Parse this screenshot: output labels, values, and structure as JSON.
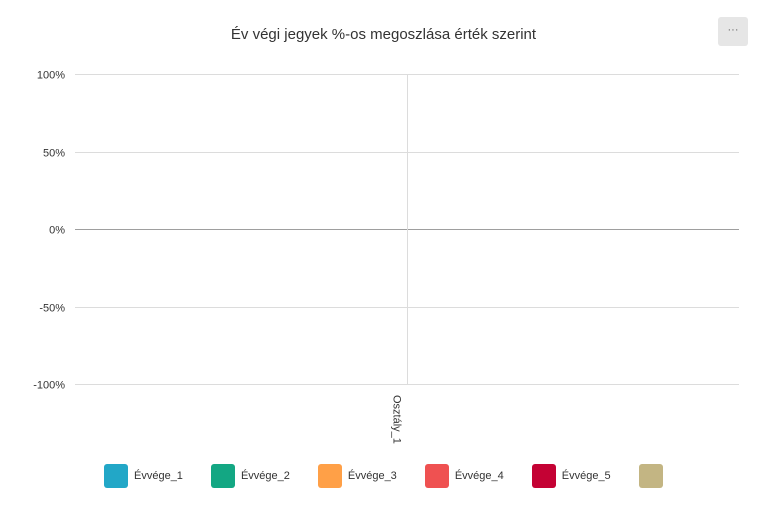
{
  "chart_data": {
    "type": "bar",
    "title": "Év végi jegyek %-os megoszlása érték szerint",
    "categories": [
      "Osztály_1"
    ],
    "series": [
      {
        "name": "Évvége_1",
        "values": [
          0
        ],
        "color": "#22a7c7"
      },
      {
        "name": "Évvége_2",
        "values": [
          0
        ],
        "color": "#13a783"
      },
      {
        "name": "Évvége_3",
        "values": [
          0
        ],
        "color": "#ffa047"
      },
      {
        "name": "Évvége_4",
        "values": [
          0
        ],
        "color": "#ef5151"
      },
      {
        "name": "Évvége_5",
        "values": [
          0
        ],
        "color": "#c40234"
      },
      {
        "name": "",
        "values": [
          0
        ],
        "color": "#c3b583"
      }
    ],
    "yticks": [
      "100%",
      "50%",
      "0%",
      "-50%",
      "-100%"
    ],
    "ytick_values": [
      100,
      50,
      0,
      -50,
      -100
    ],
    "ylim": [
      -100,
      100
    ],
    "grid": true,
    "legend_position": "bottom-left"
  },
  "menu": {
    "icon": "ellipsis-icon",
    "label": "···"
  }
}
